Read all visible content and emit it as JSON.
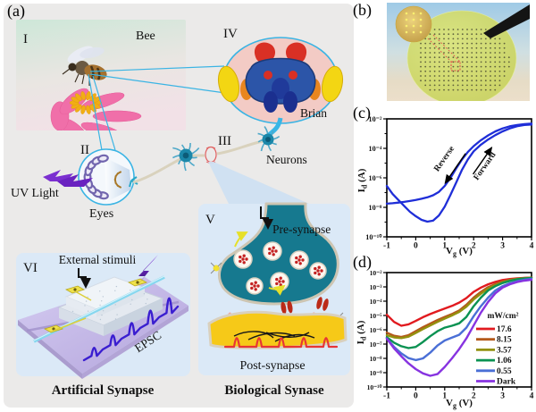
{
  "panel_labels": {
    "a": "(a)",
    "b": "(b)",
    "c": "(c)",
    "d": "(d)"
  },
  "panel_a": {
    "numeral_i": "I",
    "bee_label": "Bee",
    "numeral_ii": "II",
    "uv_light": "UV Light",
    "eyes_label": "Eyes",
    "numeral_iii": "III",
    "neurons_label": "Neurons",
    "numeral_iv": "IV",
    "brain_label": "Brian",
    "numeral_v": "V",
    "pre_synapse": "Pre-synapse",
    "post_synapse": "Post-synapse",
    "numeral_vi": "VI",
    "external_stimuli": "External stimuli",
    "epsc_label": "EPSC",
    "caption_artificial": "Artificial Synapse",
    "caption_biological": "Biological Synase"
  },
  "chart_data": [
    {
      "panel": "c",
      "type": "line",
      "xlabel": {
        "main": "V",
        "sub": "g",
        "unit": " (V)"
      },
      "ylabel": {
        "main": "I",
        "sub": "d",
        "unit": " (A)"
      },
      "xlim": [
        -1,
        4
      ],
      "ylog_lim": [
        -10,
        -2
      ],
      "xticks": [
        -1,
        0,
        1,
        2,
        3,
        4
      ],
      "yticks": [
        {
          "exp": -2,
          "label": "10⁻²"
        },
        {
          "exp": -4,
          "label": "10⁻⁴"
        },
        {
          "exp": -6,
          "label": "10⁻⁶"
        },
        {
          "exp": -8,
          "label": "10⁻⁸"
        },
        {
          "exp": -10,
          "label": "10⁻¹⁰"
        }
      ],
      "minor_yticks": [
        -3,
        -5,
        -7,
        -9
      ],
      "grid": false,
      "legend_position": "none",
      "x": [
        -1,
        -0.8,
        -0.6,
        -0.4,
        -0.2,
        0,
        0.2,
        0.4,
        0.6,
        0.8,
        1,
        1.2,
        1.4,
        1.6,
        1.8,
        2,
        2.25,
        2.5,
        2.75,
        3,
        3.25,
        3.5,
        3.75,
        4
      ],
      "series": [
        {
          "name": "Forward sweep",
          "color": "#1f2ed8",
          "logy": [
            -6.55,
            -7.1,
            -7.5,
            -7.9,
            -8.3,
            -8.6,
            -8.85,
            -8.97,
            -8.9,
            -8.55,
            -7.95,
            -7.15,
            -6.3,
            -5.45,
            -4.75,
            -4.2,
            -3.75,
            -3.4,
            -3.1,
            -2.85,
            -2.65,
            -2.5,
            -2.42,
            -2.38
          ]
        },
        {
          "name": "Reverse sweep",
          "color": "#1f2ed8",
          "logy": [
            -7.75,
            -7.72,
            -7.68,
            -7.63,
            -7.57,
            -7.5,
            -7.42,
            -7.32,
            -7.18,
            -6.95,
            -6.55,
            -6.0,
            -5.35,
            -4.75,
            -4.25,
            -3.85,
            -3.45,
            -3.12,
            -2.85,
            -2.65,
            -2.5,
            -2.42,
            -2.36,
            -2.32
          ]
        }
      ],
      "annotations": [
        {
          "text": "Reverse",
          "x": 1.05,
          "logy": -4.8,
          "angle": -55,
          "arrow": {
            "x1": 1.72,
            "logy1": -4.35,
            "x2": 1.02,
            "logy2": -6.35
          }
        },
        {
          "text": "Forward",
          "x": 2.45,
          "logy": -5.3,
          "angle": -55,
          "arrow": {
            "x1": 1.98,
            "logy1": -5.75,
            "x2": 2.62,
            "logy2": -3.95
          }
        }
      ]
    },
    {
      "panel": "d",
      "type": "line",
      "xlabel": {
        "main": "V",
        "sub": "g",
        "unit": " (V)"
      },
      "ylabel": {
        "main": "I",
        "sub": "d",
        "unit": " (A)"
      },
      "xlim": [
        -1,
        4
      ],
      "ylog_lim": [
        -10,
        -2
      ],
      "xticks": [
        -1,
        0,
        1,
        2,
        3,
        4
      ],
      "yticks": [
        {
          "exp": -2,
          "label": "10⁻²"
        },
        {
          "exp": -3,
          "label": "10⁻³"
        },
        {
          "exp": -4,
          "label": "10⁻⁴"
        },
        {
          "exp": -5,
          "label": "10⁻⁵"
        },
        {
          "exp": -6,
          "label": "10⁻⁶"
        },
        {
          "exp": -7,
          "label": "10⁻⁷"
        },
        {
          "exp": -8,
          "label": "10⁻⁸"
        },
        {
          "exp": -9,
          "label": "10⁻⁹"
        },
        {
          "exp": -10,
          "label": "10⁻¹⁰"
        }
      ],
      "minor_yticks": [],
      "grid": false,
      "legend_position": "inside-right",
      "legend": {
        "title": "mW/cm²",
        "entries": [
          {
            "label": "17.6",
            "color": "#e11a1f"
          },
          {
            "label": "8.15",
            "color": "#b4591b"
          },
          {
            "label": "3.57",
            "color": "#93910f"
          },
          {
            "label": "1.06",
            "color": "#0a9252"
          },
          {
            "label": "0.55",
            "color": "#4a6fd6"
          },
          {
            "label": "Dark",
            "color": "#8733e0"
          }
        ]
      },
      "x": [
        -1,
        -0.75,
        -0.5,
        -0.25,
        0,
        0.25,
        0.5,
        0.75,
        1,
        1.25,
        1.5,
        1.75,
        2,
        2.25,
        2.5,
        2.75,
        3,
        3.25,
        3.5,
        3.75,
        4
      ],
      "series": [
        {
          "name": "17.6",
          "color": "#e11a1f",
          "logy": [
            -4.95,
            -5.45,
            -5.72,
            -5.62,
            -5.38,
            -5.12,
            -4.9,
            -4.7,
            -4.52,
            -4.33,
            -4.1,
            -3.78,
            -3.35,
            -3.05,
            -2.82,
            -2.65,
            -2.52,
            -2.45,
            -2.4,
            -2.37,
            -2.35
          ]
        },
        {
          "name": "8.15",
          "color": "#b4591b",
          "logy": [
            -6.2,
            -6.42,
            -6.5,
            -6.38,
            -6.1,
            -5.82,
            -5.57,
            -5.32,
            -5.1,
            -4.9,
            -4.65,
            -4.25,
            -3.75,
            -3.35,
            -3.02,
            -2.8,
            -2.62,
            -2.5,
            -2.43,
            -2.38,
            -2.35
          ]
        },
        {
          "name": "3.57",
          "color": "#93910f",
          "logy": [
            -6.38,
            -6.53,
            -6.58,
            -6.48,
            -6.22,
            -5.95,
            -5.7,
            -5.45,
            -5.22,
            -5.0,
            -4.75,
            -4.38,
            -3.88,
            -3.48,
            -3.12,
            -2.88,
            -2.68,
            -2.55,
            -2.45,
            -2.4,
            -2.36
          ]
        },
        {
          "name": "1.06",
          "color": "#0a9252",
          "logy": [
            -6.52,
            -6.9,
            -7.15,
            -7.28,
            -7.2,
            -6.85,
            -6.45,
            -6.1,
            -5.85,
            -5.72,
            -5.55,
            -5.1,
            -4.35,
            -3.75,
            -3.25,
            -2.95,
            -2.73,
            -2.58,
            -2.47,
            -2.41,
            -2.37
          ]
        },
        {
          "name": "0.55",
          "color": "#4a6fd6",
          "logy": [
            -6.6,
            -7.2,
            -7.65,
            -7.98,
            -8.12,
            -8.0,
            -7.6,
            -7.1,
            -6.75,
            -6.55,
            -6.35,
            -5.85,
            -5.05,
            -4.35,
            -3.75,
            -3.25,
            -2.95,
            -2.75,
            -2.6,
            -2.5,
            -2.43
          ]
        },
        {
          "name": "Dark",
          "color": "#8733e0",
          "logy": [
            -6.62,
            -7.3,
            -7.85,
            -8.35,
            -8.75,
            -9.05,
            -9.22,
            -9.1,
            -8.6,
            -8.0,
            -7.35,
            -6.6,
            -5.7,
            -4.8,
            -4.05,
            -3.45,
            -3.05,
            -2.82,
            -2.66,
            -2.56,
            -2.5
          ]
        }
      ]
    }
  ]
}
